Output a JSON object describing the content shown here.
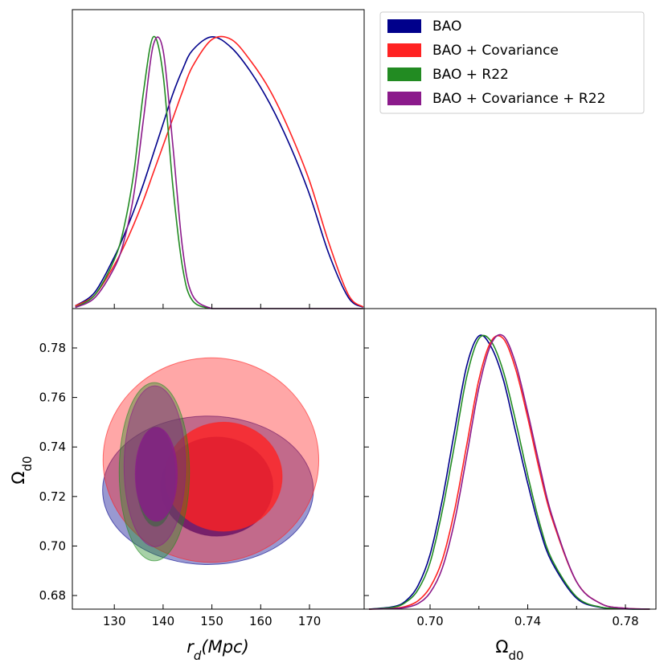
{
  "chart_data": [
    {
      "type": "line",
      "x": [
        122,
        126,
        130,
        132,
        134,
        136,
        138,
        140,
        142,
        144,
        146,
        150,
        154,
        158,
        162,
        166,
        170,
        174,
        178,
        181
      ],
      "xlim": [
        121.4,
        181.2
      ],
      "ylim": [
        0,
        1.1
      ],
      "legend": "upper right",
      "series": [
        {
          "name": "BAO",
          "color": "#00008b",
          "values": [
            0.01,
            0.06,
            0.19,
            0.27,
            0.36,
            0.46,
            0.57,
            0.68,
            0.79,
            0.88,
            0.95,
            1.0,
            0.96,
            0.87,
            0.75,
            0.6,
            0.42,
            0.2,
            0.04,
            0.005
          ]
        },
        {
          "name": "BAO + Covariance",
          "color": "#ff2222",
          "values": [
            0.01,
            0.05,
            0.16,
            0.23,
            0.31,
            0.4,
            0.5,
            0.6,
            0.7,
            0.8,
            0.89,
            0.99,
            0.99,
            0.91,
            0.8,
            0.65,
            0.47,
            0.24,
            0.05,
            0.006
          ]
        },
        {
          "name": "BAO + R22",
          "color": "#228b22",
          "values": [
            0.005,
            0.05,
            0.18,
            0.3,
            0.5,
            0.8,
            1.0,
            0.86,
            0.45,
            0.15,
            0.03,
            0,
            0,
            0,
            0,
            0,
            0,
            0,
            0,
            0
          ]
        },
        {
          "name": "BAO + Covariance + R22",
          "color": "#8b1a8b",
          "values": [
            0.004,
            0.04,
            0.15,
            0.25,
            0.42,
            0.7,
            0.97,
            0.95,
            0.6,
            0.22,
            0.05,
            0,
            0,
            0,
            0,
            0,
            0,
            0,
            0,
            0
          ]
        }
      ]
    },
    {
      "type": "contour",
      "xlim": [
        121.4,
        181.2
      ],
      "ylim": [
        0.6745,
        0.7959
      ],
      "xticks": [
        130,
        140,
        150,
        160,
        170
      ],
      "yticks": [
        0.68,
        {
          "value": 0.7,
          "label": "0.70"
        },
        0.72,
        0.74,
        0.76,
        0.78
      ],
      "xlabel": [
        "r",
        "d",
        "(Mpc)"
      ],
      "ylabel": [
        "Ω",
        "d0"
      ],
      "series": [
        {
          "color": "#00008b",
          "ellipses": [
            {
              "cx": 149.2,
              "cy": 0.7225,
              "rx": 21.6,
              "ry": 0.03
            },
            {
              "cx": 151,
              "cy": 0.724,
              "rx": 11.5,
              "ry": 0.02
            }
          ]
        },
        {
          "color": "#ff2222",
          "ellipses": [
            {
              "cx": 149.8,
              "cy": 0.7347,
              "rx": 22.1,
              "ry": 0.0413
            },
            {
              "cx": 152.4,
              "cy": 0.728,
              "rx": 12,
              "ry": 0.022
            }
          ]
        },
        {
          "color": "#228b22",
          "ellipses": [
            {
              "cx": 138.2,
              "cy": 0.73,
              "rx": 7.2,
              "ry": 0.036
            },
            {
              "cx": 138.5,
              "cy": 0.728,
              "rx": 4,
              "ry": 0.02
            }
          ]
        },
        {
          "color": "#8b1a8b",
          "ellipses": [
            {
              "cx": 138.3,
              "cy": 0.7322,
              "rx": 6.3,
              "ry": 0.0325
            },
            {
              "cx": 138.6,
              "cy": 0.729,
              "rx": 4.3,
              "ry": 0.019
            }
          ]
        }
      ]
    },
    {
      "type": "line",
      "x": [
        0.675,
        0.685,
        0.69,
        0.695,
        0.7,
        0.705,
        0.71,
        0.715,
        0.72,
        0.725,
        0.73,
        0.735,
        0.74,
        0.745,
        0.75,
        0.76,
        0.77,
        0.78,
        0.79
      ],
      "xlim": [
        0.673,
        0.7925
      ],
      "ylim": [
        0,
        1.1
      ],
      "xticks": [
        {
          "value": 0.7,
          "label": "0.70"
        },
        0.74,
        0.78
      ],
      "xminor": [
        0.72,
        0.76
      ],
      "xlabel": [
        "Ω",
        "d0"
      ],
      "series": [
        {
          "color": "#00008b",
          "values": [
            0,
            0.009,
            0.03,
            0.085,
            0.2,
            0.4,
            0.65,
            0.89,
            1.0,
            0.96,
            0.84,
            0.65,
            0.46,
            0.29,
            0.17,
            0.04,
            0.006,
            0.001,
            0
          ]
        },
        {
          "color": "#ff2222",
          "values": [
            0,
            0.003,
            0.01,
            0.03,
            0.08,
            0.18,
            0.36,
            0.6,
            0.84,
            0.98,
            0.99,
            0.88,
            0.7,
            0.5,
            0.33,
            0.1,
            0.02,
            0.003,
            0
          ]
        },
        {
          "color": "#228b22",
          "values": [
            0,
            0.007,
            0.025,
            0.07,
            0.17,
            0.36,
            0.6,
            0.85,
            0.99,
            0.98,
            0.87,
            0.69,
            0.49,
            0.31,
            0.18,
            0.045,
            0.007,
            0.001,
            0
          ]
        },
        {
          "color": "#8b1a8b",
          "values": [
            0,
            0.002,
            0.006,
            0.02,
            0.06,
            0.15,
            0.32,
            0.56,
            0.81,
            0.97,
            1.0,
            0.9,
            0.72,
            0.52,
            0.34,
            0.1,
            0.02,
            0.003,
            0
          ]
        }
      ]
    }
  ]
}
